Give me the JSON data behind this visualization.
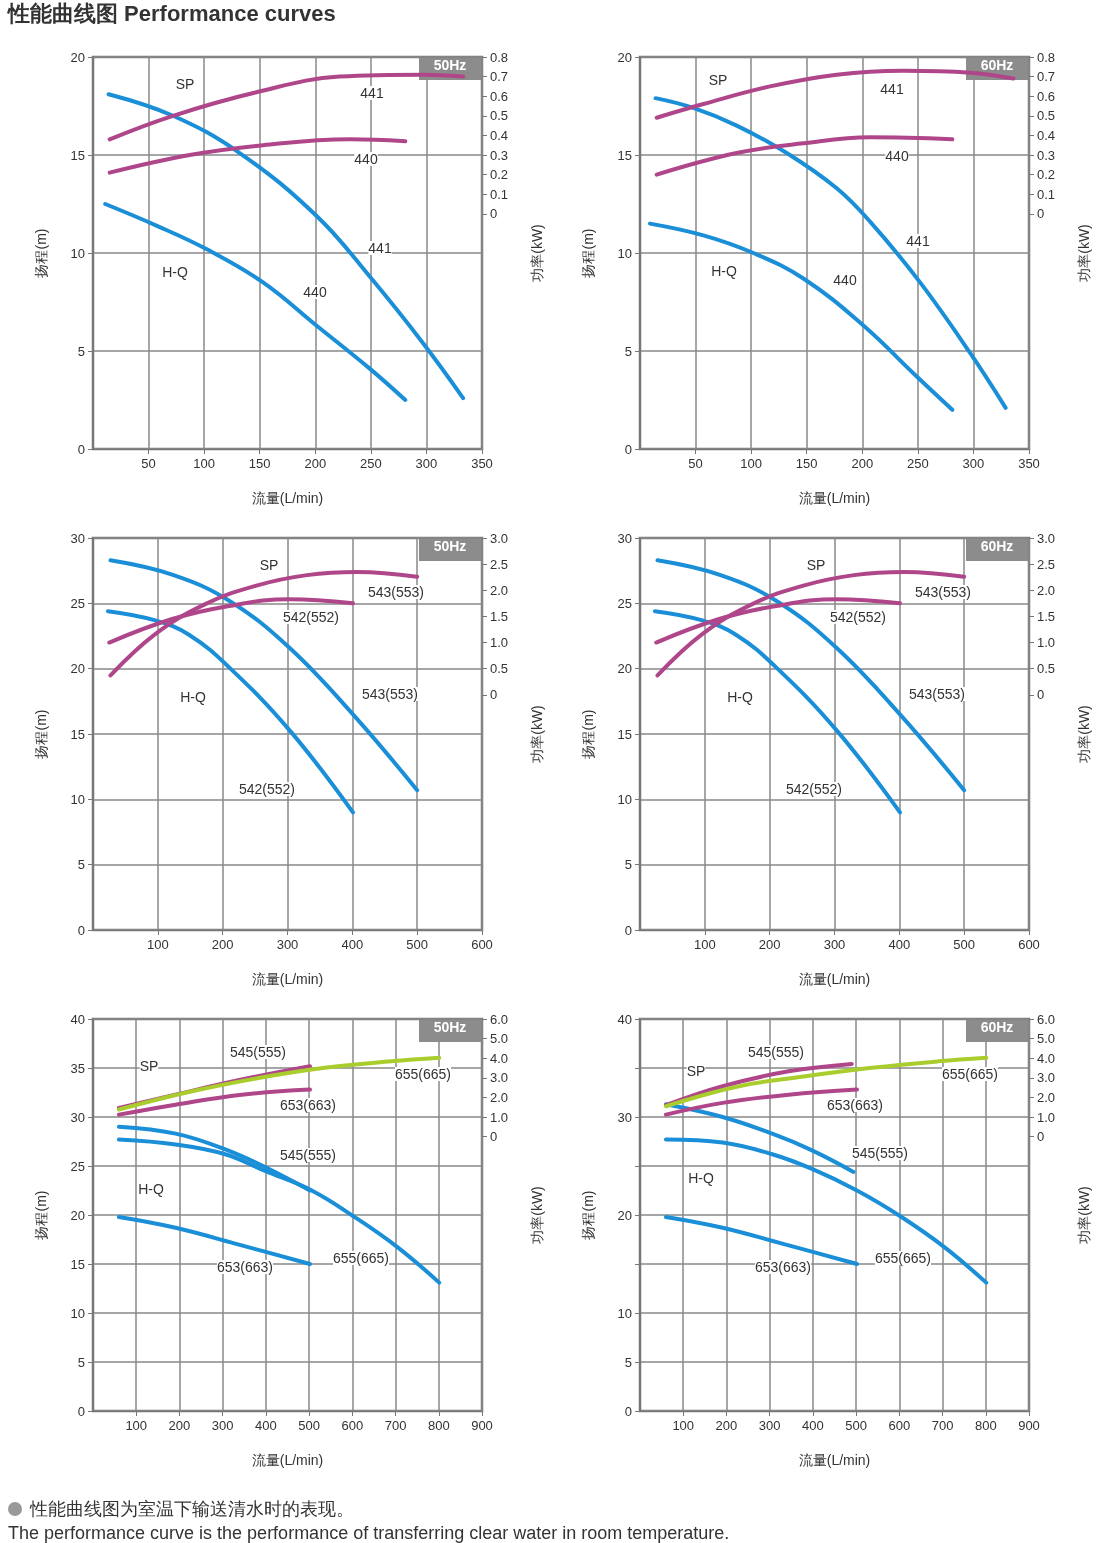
{
  "chart_data": [
    {
      "type": "line",
      "title": "性能曲线图 Performance curves",
      "xlabel": "流量(L/min)",
      "ylabel": "扬程(m)",
      "y2label": "功率(kW)",
      "xlim": [
        0,
        350
      ],
      "xticks": [
        50,
        100,
        150,
        200,
        250,
        300,
        350
      ],
      "ylim": [
        0,
        20
      ],
      "yticks": [
        0,
        5,
        10,
        15,
        20
      ],
      "y2lim": [
        -1.2,
        0.8
      ],
      "y2ticks": [
        0,
        0.1,
        0.2,
        0.3,
        0.4,
        0.5,
        0.6,
        0.7,
        0.8
      ],
      "grid": true,
      "series": [
        {
          "color": "#1a8fd8",
          "x": [
            14,
            72,
            132,
            201,
            249,
            297,
            333
          ],
          "values": [
            18.1,
            17.0,
            15.1,
            11.9,
            8.8,
            5.4,
            2.6
          ]
        },
        {
          "color": "#1a8fd8",
          "x": [
            11,
            57,
            102,
            153,
            201,
            249,
            281
          ],
          "values": [
            12.5,
            11.4,
            10.2,
            8.5,
            6.3,
            4.1,
            2.5
          ]
        },
        {
          "color": "#b0468a",
          "axis": "y2",
          "x": [
            15,
            72,
            147,
            222,
            297,
            333
          ],
          "values": [
            0.38,
            0.5,
            0.62,
            0.7,
            0.71,
            0.7
          ]
        },
        {
          "color": "#b0468a",
          "axis": "y2",
          "x": [
            15,
            87,
            153,
            231,
            281
          ],
          "values": [
            0.21,
            0.3,
            0.35,
            0.38,
            0.37
          ]
        }
      ],
      "annotations": [
        "50Hz",
        "SP",
        "441",
        "440",
        "441",
        "440",
        "H-Q"
      ]
    },
    {
      "type": "line",
      "xlabel": "流量(L/min)",
      "ylabel": "扬程(m)",
      "y2label": "功率(kW)",
      "xlim": [
        0,
        350
      ],
      "xticks": [
        50,
        100,
        150,
        200,
        250,
        300,
        350
      ],
      "ylim": [
        0,
        20
      ],
      "yticks": [
        0,
        5,
        10,
        15,
        20
      ],
      "y2lim": [
        -1.2,
        0.8
      ],
      "y2ticks": [
        0,
        0.1,
        0.2,
        0.3,
        0.4,
        0.5,
        0.6,
        0.7,
        0.8
      ],
      "grid": true,
      "series": [
        {
          "color": "#1a8fd8",
          "x": [
            14,
            48,
            87,
            132,
            177,
            207,
            252,
            297,
            329
          ],
          "values": [
            17.9,
            17.4,
            16.5,
            15.1,
            13.3,
            11.6,
            8.5,
            4.9,
            2.1
          ]
        },
        {
          "color": "#1a8fd8",
          "x": [
            9,
            57,
            102,
            147,
            201,
            249,
            281
          ],
          "values": [
            11.5,
            10.9,
            10.0,
            8.7,
            6.3,
            3.7,
            2.0
          ]
        },
        {
          "color": "#b0468a",
          "axis": "y2",
          "x": [
            15,
            57,
            117,
            177,
            237,
            297,
            336
          ],
          "values": [
            0.49,
            0.56,
            0.65,
            0.71,
            0.73,
            0.72,
            0.69
          ]
        },
        {
          "color": "#b0468a",
          "axis": "y2",
          "x": [
            15,
            87,
            147,
            207,
            281
          ],
          "values": [
            0.2,
            0.31,
            0.36,
            0.39,
            0.38
          ]
        }
      ],
      "annotations": [
        "60Hz",
        "SP",
        "441",
        "440",
        "441",
        "440",
        "H-Q"
      ]
    },
    {
      "type": "line",
      "xlabel": "流量(L/min)",
      "ylabel": "扬程(m)",
      "y2label": "功率(kW)",
      "xlim": [
        0,
        600
      ],
      "xticks": [
        100,
        200,
        300,
        400,
        500,
        600
      ],
      "ylim": [
        0,
        30
      ],
      "yticks": [
        0,
        5,
        10,
        15,
        20,
        25,
        30
      ],
      "y2lim": [
        -4.5,
        3
      ],
      "y2ticks": [
        0,
        0.5,
        {
          "value": 1,
          "label": "1.0"
        },
        1.5,
        {
          "value": 2,
          "label": "2.0"
        },
        2.5,
        {
          "value": 3,
          "label": "3.0"
        }
      ],
      "grid": true,
      "series": [
        {
          "color": "#1a8fd8",
          "x": [
            27,
            122,
            210,
            303,
            401,
            500
          ],
          "values": [
            28.3,
            27.2,
            25.2,
            21.6,
            16.5,
            10.7
          ]
        },
        {
          "color": "#1a8fd8",
          "x": [
            23,
            96,
            148,
            210,
            303,
            401
          ],
          "values": [
            24.4,
            23.7,
            22.6,
            20.1,
            15.3,
            9.0
          ]
        },
        {
          "color": "#b0468a",
          "axis": "y2",
          "x": [
            27,
            96,
            174,
            252,
            330,
            408,
            500
          ],
          "values": [
            0.37,
            1.16,
            1.74,
            2.09,
            2.29,
            2.35,
            2.26
          ]
        },
        {
          "color": "#b0468a",
          "axis": "y2",
          "x": [
            25,
            122,
            210,
            303,
            401
          ],
          "values": [
            1.0,
            1.45,
            1.7,
            1.83,
            1.75
          ]
        }
      ],
      "annotations": [
        "50Hz",
        "SP",
        "543(553)",
        "542(552)",
        "543(553)",
        "542(552)",
        "H-Q"
      ]
    },
    {
      "type": "line",
      "xlabel": "流量(L/min)",
      "ylabel": "扬程(m)",
      "y2label": "功率(kW)",
      "xlim": [
        0,
        600
      ],
      "xticks": [
        100,
        200,
        300,
        400,
        500,
        600
      ],
      "ylim": [
        0,
        30
      ],
      "yticks": [
        0,
        5,
        10,
        15,
        20,
        25,
        30
      ],
      "y2lim": [
        -4.5,
        3
      ],
      "y2ticks": [
        0,
        0.5,
        {
          "value": 1,
          "label": "1.0"
        },
        1.5,
        {
          "value": 2,
          "label": "2.0"
        },
        2.5,
        {
          "value": 3,
          "label": "3.0"
        }
      ],
      "grid": true,
      "series": [
        {
          "color": "#1a8fd8",
          "x": [
            27,
            122,
            210,
            303,
            401,
            500
          ],
          "values": [
            28.3,
            27.2,
            25.2,
            21.6,
            16.5,
            10.7
          ]
        },
        {
          "color": "#1a8fd8",
          "x": [
            23,
            96,
            148,
            210,
            303,
            401
          ],
          "values": [
            24.4,
            23.7,
            22.6,
            20.1,
            15.3,
            9.0
          ]
        },
        {
          "color": "#b0468a",
          "axis": "y2",
          "x": [
            27,
            96,
            174,
            252,
            330,
            408,
            500
          ],
          "values": [
            0.37,
            1.16,
            1.74,
            2.09,
            2.29,
            2.35,
            2.26
          ]
        },
        {
          "color": "#b0468a",
          "axis": "y2",
          "x": [
            25,
            122,
            210,
            303,
            401
          ],
          "values": [
            1.0,
            1.45,
            1.7,
            1.83,
            1.75
          ]
        }
      ],
      "annotations": [
        "60Hz",
        "SP",
        "543(553)",
        "542(552)",
        "543(553)",
        "542(552)",
        "H-Q"
      ]
    },
    {
      "type": "line",
      "xlabel": "流量(L/min)",
      "ylabel": "扬程(m)",
      "y2label": "功率(kW)",
      "xlim": [
        0,
        900
      ],
      "xticks": [
        100,
        200,
        300,
        400,
        500,
        600,
        700,
        800,
        900
      ],
      "ylim": [
        0,
        40
      ],
      "yticks": [
        0,
        5,
        10,
        15,
        20,
        25,
        30,
        35,
        40
      ],
      "y2lim": [
        -14,
        6
      ],
      "y2ticks": [
        0,
        {
          "value": 1,
          "label": "1.0"
        },
        {
          "value": 2,
          "label": "2.0"
        },
        {
          "value": 3,
          "label": "3.0"
        },
        {
          "value": 4,
          "label": "4.0"
        },
        {
          "value": 5,
          "label": "5.0"
        },
        {
          "value": 6,
          "label": "6.0"
        }
      ],
      "grid": true,
      "series": [
        {
          "color": "#1a8fd8",
          "x": [
            60,
            191,
            306,
            398,
            502
          ],
          "values": [
            29.0,
            28.3,
            26.7,
            24.9,
            22.5
          ]
        },
        {
          "color": "#1a8fd8",
          "x": [
            60,
            191,
            306,
            398,
            506,
            605,
            705,
            801
          ],
          "values": [
            27.7,
            27.2,
            26.2,
            24.5,
            22.5,
            19.8,
            16.7,
            13.1
          ]
        },
        {
          "color": "#1a8fd8",
          "x": [
            60,
            191,
            344,
            502
          ],
          "values": [
            19.8,
            18.7,
            16.9,
            15.0
          ]
        },
        {
          "color": "#b0468a",
          "axis": "y2",
          "x": [
            60,
            191,
            344,
            502
          ],
          "values": [
            1.46,
            2.14,
            2.91,
            3.59
          ]
        },
        {
          "color": "#a9cd2d",
          "axis": "y2",
          "x": [
            60,
            229,
            383,
            536,
            690,
            801
          ],
          "values": [
            1.38,
            2.31,
            2.99,
            3.51,
            3.84,
            4.02
          ]
        },
        {
          "color": "#b0468a",
          "axis": "y2",
          "x": [
            60,
            191,
            344,
            502
          ],
          "values": [
            1.12,
            1.63,
            2.14,
            2.4
          ]
        }
      ],
      "annotations": [
        "50Hz",
        "SP",
        "545(555)",
        "655(665)",
        "653(663)",
        "545(555)",
        "H-Q",
        "653(663)",
        "655(665)"
      ]
    },
    {
      "type": "line",
      "xlabel": "流量(L/min)",
      "ylabel": "扬程(m)",
      "y2label": "功率(kW)",
      "xlim": [
        0,
        900
      ],
      "xticks": [
        100,
        200,
        300,
        400,
        500,
        600,
        700,
        800,
        900
      ],
      "ylim": [
        0,
        40
      ],
      "yticks": [
        0,
        5,
        10,
        {
          "value": 15,
          "label": null
        },
        20,
        {
          "value": 25,
          "label": null
        },
        30,
        {
          "value": 35,
          "label": null
        },
        40
      ],
      "y2lim": [
        -14,
        6
      ],
      "y2ticks": [
        0,
        {
          "value": 1,
          "label": "1.0"
        },
        {
          "value": 2,
          "label": "2.0"
        },
        {
          "value": 3,
          "label": "3.0"
        },
        {
          "value": 4,
          "label": "4.0"
        },
        {
          "value": 5,
          "label": "5.0"
        },
        {
          "value": 6,
          "label": "6.0"
        }
      ],
      "grid": true,
      "series": [
        {
          "color": "#1a8fd8",
          "x": [
            60,
            191,
            306,
            398,
            494
          ],
          "values": [
            31.3,
            30.0,
            28.3,
            26.6,
            24.4
          ]
        },
        {
          "color": "#1a8fd8",
          "x": [
            60,
            191,
            306,
            398,
            502,
            605,
            705,
            801
          ],
          "values": [
            27.7,
            27.4,
            26.2,
            24.7,
            22.5,
            19.8,
            16.7,
            13.1
          ]
        },
        {
          "color": "#1a8fd8",
          "x": [
            60,
            191,
            344,
            502
          ],
          "values": [
            19.8,
            18.7,
            16.9,
            15.0
          ]
        },
        {
          "color": "#b0468a",
          "axis": "y2",
          "x": [
            60,
            191,
            344,
            490
          ],
          "values": [
            1.6,
            2.57,
            3.33,
            3.71
          ]
        },
        {
          "color": "#a9cd2d",
          "axis": "y2",
          "x": [
            60,
            229,
            383,
            536,
            690,
            801
          ],
          "values": [
            1.55,
            2.57,
            3.08,
            3.51,
            3.84,
            4.02
          ]
        },
        {
          "color": "#b0468a",
          "axis": "y2",
          "x": [
            60,
            191,
            344,
            502
          ],
          "values": [
            1.12,
            1.72,
            2.14,
            2.4
          ]
        }
      ],
      "annotations": [
        "60Hz",
        "SP",
        "545(555)",
        "655(665)",
        "653(663)",
        "545(555)",
        "H-Q",
        "653(663)",
        "655(665)",
        "性能曲线图为室温下输送清水时的表现。",
        "The performance curve is the performance of transferring clear water in room temperature."
      ]
    }
  ]
}
